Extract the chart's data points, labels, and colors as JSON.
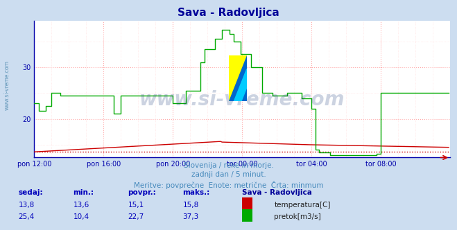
{
  "title": "Sava - Radovljica",
  "title_color": "#000099",
  "bg_color": "#ccddf0",
  "plot_bg_color": "#ffffff",
  "grid_color_major": "#ffaaaa",
  "grid_color_minor": "#ffdddd",
  "xlabel_ticks": [
    "pon 12:00",
    "pon 16:00",
    "pon 20:00",
    "tor 00:00",
    "tor 04:00",
    "tor 08:00"
  ],
  "yticks": [
    20,
    30
  ],
  "ylim": [
    12.5,
    39
  ],
  "xlim": [
    0,
    288
  ],
  "tick_positions": [
    0,
    48,
    96,
    144,
    192,
    240
  ],
  "watermark": "www.si-vreme.com",
  "watermark_color": "#1a3a7a",
  "watermark_alpha": 0.22,
  "subtitle1": "Slovenija / reke in morje.",
  "subtitle2": "zadnji dan / 5 minut.",
  "subtitle3": "Meritve: povprečne  Enote: metrične  Črta: minmum",
  "subtitle_color": "#4488bb",
  "legend_title": "Sava - Radovljica",
  "legend_color": "#000099",
  "legend_items": [
    {
      "label": "temperatura[C]",
      "color": "#cc0000"
    },
    {
      "label": "pretok[m3/s]",
      "color": "#00aa00"
    }
  ],
  "table_headers": [
    "sedaj:",
    "min.:",
    "povpr.:",
    "maks.:"
  ],
  "table_row1": [
    "13,8",
    "13,6",
    "15,1",
    "15,8"
  ],
  "table_row2": [
    "25,4",
    "10,4",
    "22,7",
    "37,3"
  ],
  "table_color": "#0000bb",
  "minmum_temp": 13.6,
  "minmum_flow": 13.6,
  "axis_color": "#0000aa",
  "tick_color": "#0000aa",
  "left_watermark": "www.si-vreme.com",
  "left_watermark_color": "#6699bb"
}
